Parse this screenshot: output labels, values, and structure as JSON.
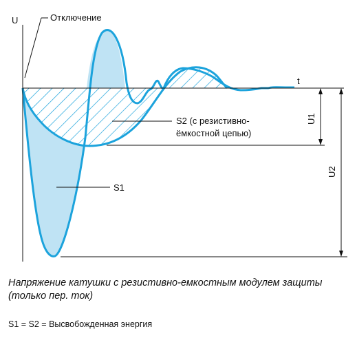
{
  "diagram": {
    "axis_u_label": "U",
    "axis_t_label": "t",
    "switch_off_label": "Отключение",
    "s2_label_line1": "S2 (с резистивно-",
    "s2_label_line2": "ёмкостной цепью)",
    "s1_label": "S1",
    "u1_label": "U1",
    "u2_label": "U2",
    "colors": {
      "curve": "#1ca3dc",
      "fill": "#bfe3f4",
      "hatch": "#1ca3dc",
      "lines": "#111111"
    }
  },
  "caption": {
    "line1": "Напряжение катушки с резистивно-емкостным модулем защиты",
    "line2": "(только пер. ток)"
  },
  "legend": {
    "equation": "S1 = S2 = Высвобожденная энергия"
  }
}
